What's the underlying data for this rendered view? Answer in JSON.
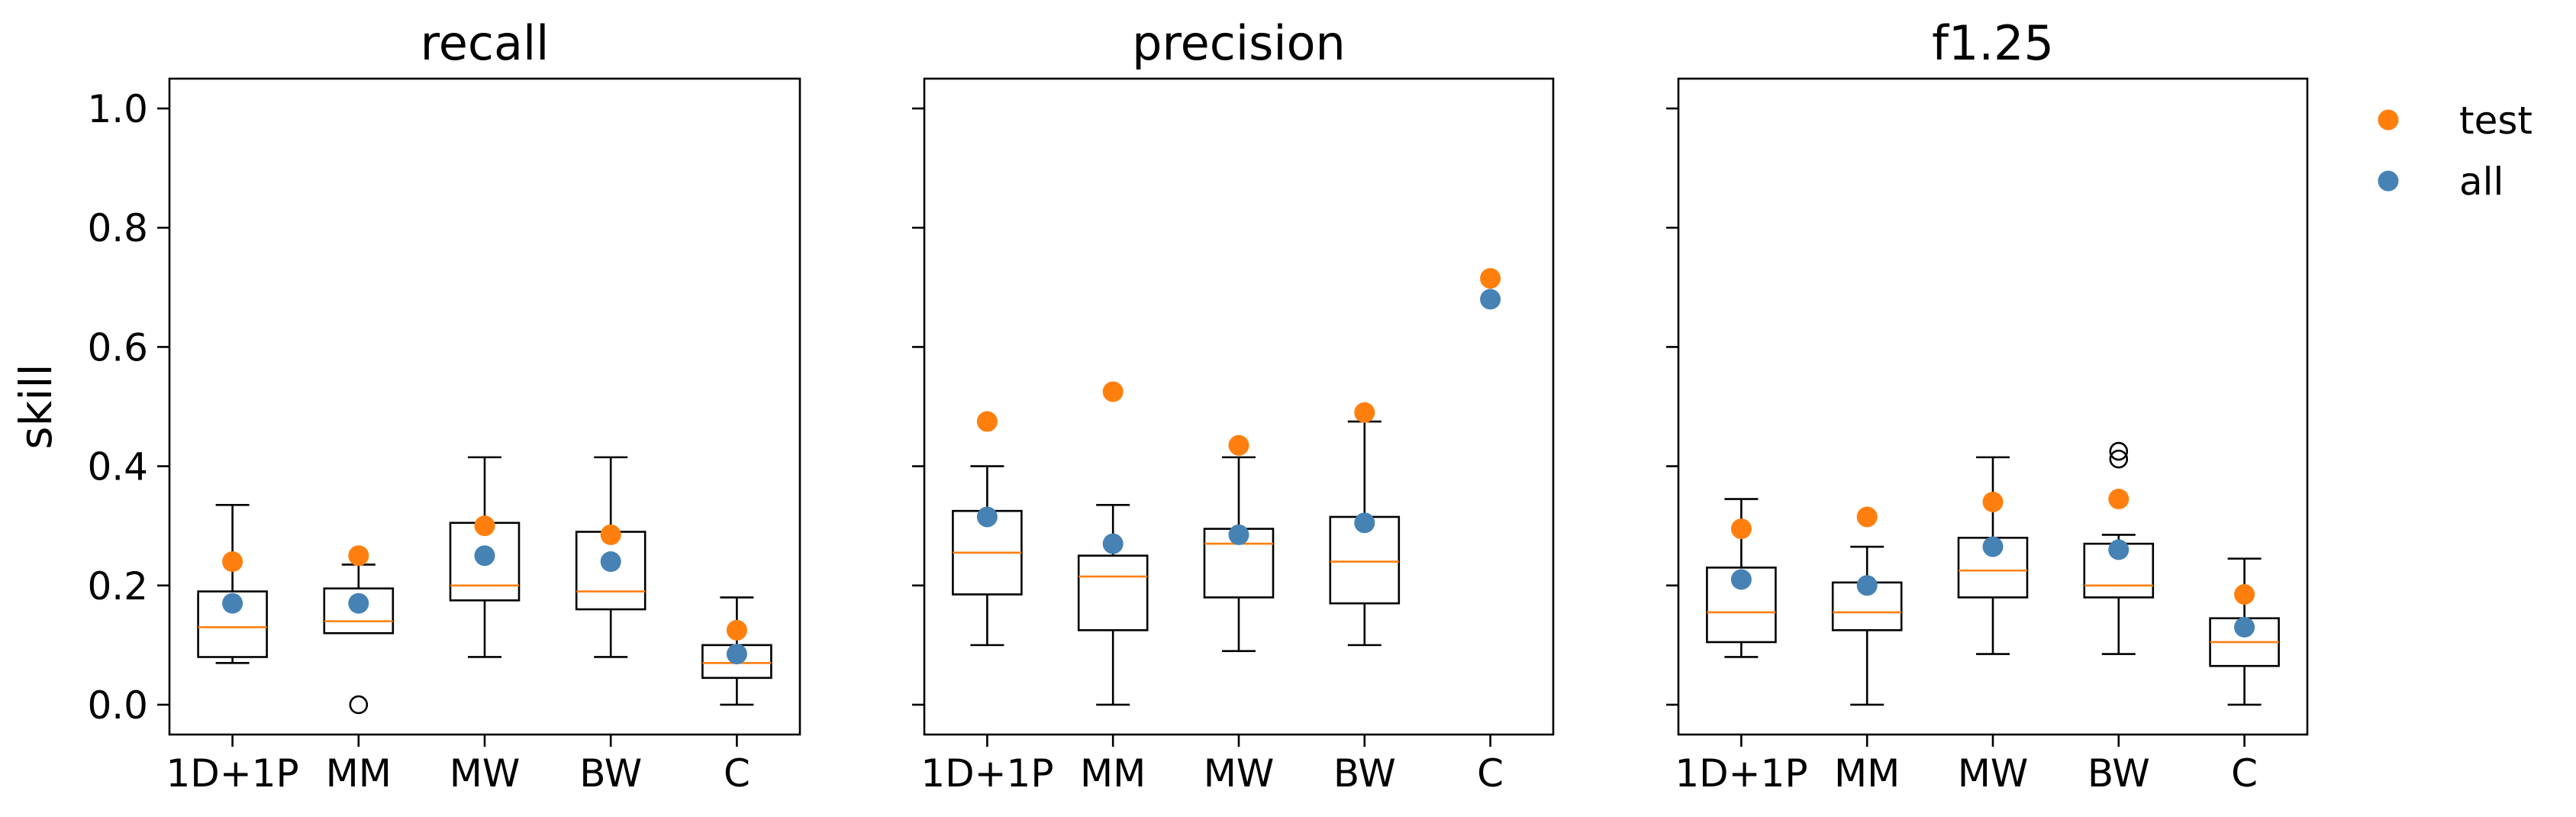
{
  "legend": {
    "placement": "upper-right-outside",
    "entries": [
      {
        "label": "test",
        "color": "#ff7f0e"
      },
      {
        "label": "all",
        "color": "#4682b4"
      }
    ]
  },
  "chart_data": [
    {
      "type": "box",
      "title": "recall",
      "ylabel": "skill",
      "ylim": [
        -0.05,
        1.05
      ],
      "yticks": [
        "0.0",
        "0.2",
        "0.4",
        "0.6",
        "0.8",
        "1.0"
      ],
      "categories": [
        "1D+1P",
        "MM",
        "MW",
        "BW",
        "C"
      ],
      "boxes": [
        {
          "lower_whisker": 0.07,
          "q1": 0.08,
          "median": 0.13,
          "q3": 0.19,
          "upper_whisker": 0.335,
          "outliers": []
        },
        {
          "lower_whisker": 0.12,
          "q1": 0.12,
          "median": 0.14,
          "q3": 0.195,
          "upper_whisker": 0.235,
          "outliers": [
            0.0
          ]
        },
        {
          "lower_whisker": 0.08,
          "q1": 0.175,
          "median": 0.2,
          "q3": 0.305,
          "upper_whisker": 0.415,
          "outliers": []
        },
        {
          "lower_whisker": 0.08,
          "q1": 0.16,
          "median": 0.19,
          "q3": 0.29,
          "upper_whisker": 0.415,
          "outliers": []
        },
        {
          "lower_whisker": 0.0,
          "q1": 0.045,
          "median": 0.07,
          "q3": 0.1,
          "upper_whisker": 0.18,
          "outliers": []
        }
      ],
      "series": [
        {
          "name": "test",
          "values": [
            0.24,
            0.25,
            0.3,
            0.285,
            0.125
          ]
        },
        {
          "name": "all",
          "values": [
            0.17,
            0.17,
            0.25,
            0.24,
            0.085
          ]
        }
      ]
    },
    {
      "type": "box",
      "title": "precision",
      "ylabel": "",
      "ylim": [
        -0.05,
        1.05
      ],
      "yticks": [],
      "categories": [
        "1D+1P",
        "MM",
        "MW",
        "BW",
        "C"
      ],
      "boxes": [
        {
          "lower_whisker": 0.1,
          "q1": 0.185,
          "median": 0.255,
          "q3": 0.325,
          "upper_whisker": 0.4,
          "outliers": []
        },
        {
          "lower_whisker": 0.0,
          "q1": 0.125,
          "median": 0.215,
          "q3": 0.25,
          "upper_whisker": 0.335,
          "outliers": []
        },
        {
          "lower_whisker": 0.09,
          "q1": 0.18,
          "median": 0.27,
          "q3": 0.295,
          "upper_whisker": 0.415,
          "outliers": []
        },
        {
          "lower_whisker": 0.1,
          "q1": 0.17,
          "median": 0.24,
          "q3": 0.315,
          "upper_whisker": 0.475,
          "outliers": []
        },
        null
      ],
      "series": [
        {
          "name": "test",
          "values": [
            0.475,
            0.525,
            0.435,
            0.49,
            0.715
          ]
        },
        {
          "name": "all",
          "values": [
            0.315,
            0.27,
            0.285,
            0.305,
            0.68
          ]
        }
      ]
    },
    {
      "type": "box",
      "title": "f1.25",
      "ylabel": "",
      "ylim": [
        -0.05,
        1.05
      ],
      "yticks": [],
      "categories": [
        "1D+1P",
        "MM",
        "MW",
        "BW",
        "C"
      ],
      "boxes": [
        {
          "lower_whisker": 0.08,
          "q1": 0.105,
          "median": 0.155,
          "q3": 0.23,
          "upper_whisker": 0.345,
          "outliers": []
        },
        {
          "lower_whisker": 0.0,
          "q1": 0.125,
          "median": 0.155,
          "q3": 0.205,
          "upper_whisker": 0.265,
          "outliers": []
        },
        {
          "lower_whisker": 0.085,
          "q1": 0.18,
          "median": 0.225,
          "q3": 0.28,
          "upper_whisker": 0.415,
          "outliers": []
        },
        {
          "lower_whisker": 0.085,
          "q1": 0.18,
          "median": 0.2,
          "q3": 0.27,
          "upper_whisker": 0.285,
          "outliers": [
            0.412,
            0.425
          ]
        },
        {
          "lower_whisker": 0.0,
          "q1": 0.065,
          "median": 0.105,
          "q3": 0.145,
          "upper_whisker": 0.245,
          "outliers": []
        }
      ],
      "series": [
        {
          "name": "test",
          "values": [
            0.295,
            0.315,
            0.34,
            0.345,
            0.185
          ]
        },
        {
          "name": "all",
          "values": [
            0.21,
            0.2,
            0.265,
            0.26,
            0.13
          ]
        }
      ]
    }
  ]
}
